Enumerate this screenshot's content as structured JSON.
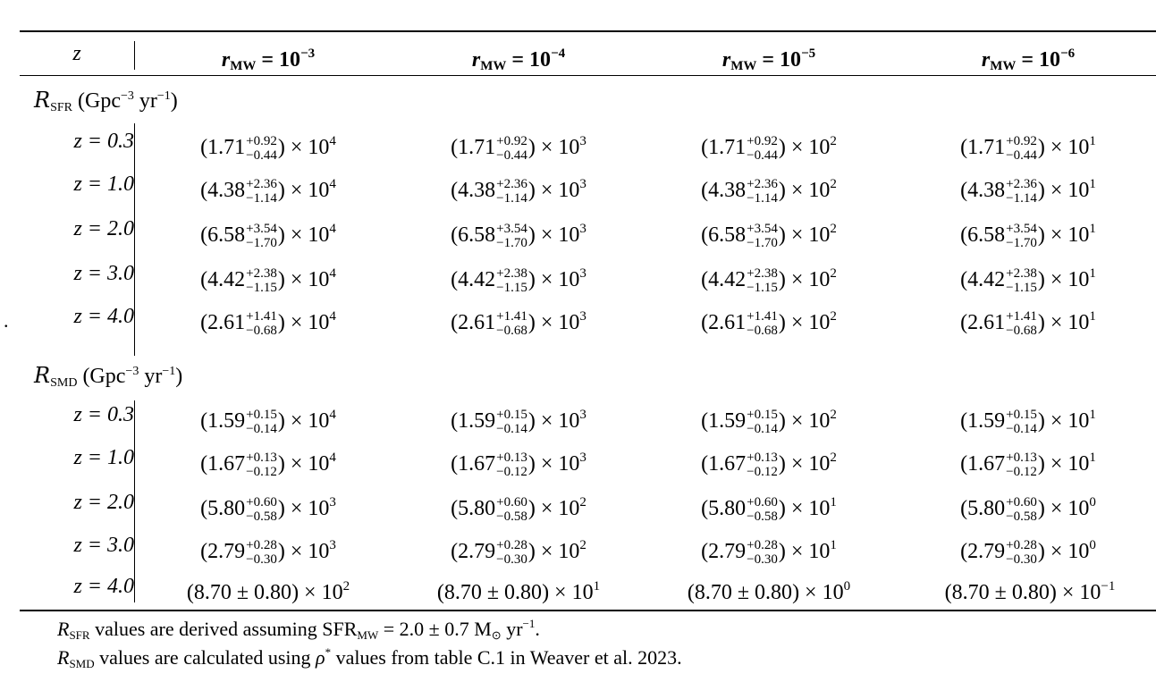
{
  "stray_mark": ".",
  "header": {
    "z_label": "z",
    "columns": [
      {
        "sym": "r",
        "sub": "MW",
        "eq": " = 10",
        "exp": "−3"
      },
      {
        "sym": "r",
        "sub": "MW",
        "eq": " = 10",
        "exp": "−4"
      },
      {
        "sym": "r",
        "sub": "MW",
        "eq": " = 10",
        "exp": "−5"
      },
      {
        "sym": "r",
        "sub": "MW",
        "eq": " = 10",
        "exp": "−6"
      }
    ]
  },
  "sections": [
    {
      "title": {
        "sym": "R",
        "sub": "SFR",
        "unit_pre": " (Gpc",
        "unit_exp1": "−3",
        "unit_mid": " yr",
        "unit_exp2": "−1",
        "unit_post": ")"
      },
      "rows": [
        {
          "z": "z = 0.3",
          "values": [
            {
              "base": "(1.71",
              "plus": "+0.92",
              "minus": "−0.44",
              "tail": ") × 10",
              "exp": "4"
            },
            {
              "base": "(1.71",
              "plus": "+0.92",
              "minus": "−0.44",
              "tail": ") × 10",
              "exp": "3"
            },
            {
              "base": "(1.71",
              "plus": "+0.92",
              "minus": "−0.44",
              "tail": ") × 10",
              "exp": "2"
            },
            {
              "base": "(1.71",
              "plus": "+0.92",
              "minus": "−0.44",
              "tail": ") × 10",
              "exp": "1"
            }
          ]
        },
        {
          "z": "z = 1.0",
          "values": [
            {
              "base": "(4.38",
              "plus": "+2.36",
              "minus": "−1.14",
              "tail": ") × 10",
              "exp": "4"
            },
            {
              "base": "(4.38",
              "plus": "+2.36",
              "minus": "−1.14",
              "tail": ") × 10",
              "exp": "3"
            },
            {
              "base": "(4.38",
              "plus": "+2.36",
              "minus": "−1.14",
              "tail": ") × 10",
              "exp": "2"
            },
            {
              "base": "(4.38",
              "plus": "+2.36",
              "minus": "−1.14",
              "tail": ") × 10",
              "exp": "1"
            }
          ]
        },
        {
          "z": "z = 2.0",
          "values": [
            {
              "base": "(6.58",
              "plus": "+3.54",
              "minus": "−1.70",
              "tail": ") × 10",
              "exp": "4"
            },
            {
              "base": "(6.58",
              "plus": "+3.54",
              "minus": "−1.70",
              "tail": ") × 10",
              "exp": "3"
            },
            {
              "base": "(6.58",
              "plus": "+3.54",
              "minus": "−1.70",
              "tail": ") × 10",
              "exp": "2"
            },
            {
              "base": "(6.58",
              "plus": "+3.54",
              "minus": "−1.70",
              "tail": ") × 10",
              "exp": "1"
            }
          ]
        },
        {
          "z": "z = 3.0",
          "values": [
            {
              "base": "(4.42",
              "plus": "+2.38",
              "minus": "−1.15",
              "tail": ") × 10",
              "exp": "4"
            },
            {
              "base": "(4.42",
              "plus": "+2.38",
              "minus": "−1.15",
              "tail": ") × 10",
              "exp": "3"
            },
            {
              "base": "(4.42",
              "plus": "+2.38",
              "minus": "−1.15",
              "tail": ") × 10",
              "exp": "2"
            },
            {
              "base": "(4.42",
              "plus": "+2.38",
              "minus": "−1.15",
              "tail": ") × 10",
              "exp": "1"
            }
          ]
        },
        {
          "z": "z = 4.0",
          "values": [
            {
              "base": "(2.61",
              "plus": "+1.41",
              "minus": "−0.68",
              "tail": ") × 10",
              "exp": "4"
            },
            {
              "base": "(2.61",
              "plus": "+1.41",
              "minus": "−0.68",
              "tail": ") × 10",
              "exp": "3"
            },
            {
              "base": "(2.61",
              "plus": "+1.41",
              "minus": "−0.68",
              "tail": ") × 10",
              "exp": "2"
            },
            {
              "base": "(2.61",
              "plus": "+1.41",
              "minus": "−0.68",
              "tail": ") × 10",
              "exp": "1"
            }
          ]
        }
      ]
    },
    {
      "title": {
        "sym": "R",
        "sub": "SMD",
        "unit_pre": " (Gpc",
        "unit_exp1": "−3",
        "unit_mid": " yr",
        "unit_exp2": "−1",
        "unit_post": ")"
      },
      "rows": [
        {
          "z": "z = 0.3",
          "values": [
            {
              "base": "(1.59",
              "plus": "+0.15",
              "minus": "−0.14",
              "tail": ") × 10",
              "exp": "4"
            },
            {
              "base": "(1.59",
              "plus": "+0.15",
              "minus": "−0.14",
              "tail": ") × 10",
              "exp": "3"
            },
            {
              "base": "(1.59",
              "plus": "+0.15",
              "minus": "−0.14",
              "tail": ") × 10",
              "exp": "2"
            },
            {
              "base": "(1.59",
              "plus": "+0.15",
              "minus": "−0.14",
              "tail": ") × 10",
              "exp": "1"
            }
          ]
        },
        {
          "z": "z = 1.0",
          "values": [
            {
              "base": "(1.67",
              "plus": "+0.13",
              "minus": "−0.12",
              "tail": ") × 10",
              "exp": "4"
            },
            {
              "base": "(1.67",
              "plus": "+0.13",
              "minus": "−0.12",
              "tail": ") × 10",
              "exp": "3"
            },
            {
              "base": "(1.67",
              "plus": "+0.13",
              "minus": "−0.12",
              "tail": ") × 10",
              "exp": "2"
            },
            {
              "base": "(1.67",
              "plus": "+0.13",
              "minus": "−0.12",
              "tail": ") × 10",
              "exp": "1"
            }
          ]
        },
        {
          "z": "z = 2.0",
          "values": [
            {
              "base": "(5.80",
              "plus": "+0.60",
              "minus": "−0.58",
              "tail": ") × 10",
              "exp": "3"
            },
            {
              "base": "(5.80",
              "plus": "+0.60",
              "minus": "−0.58",
              "tail": ") × 10",
              "exp": "2"
            },
            {
              "base": "(5.80",
              "plus": "+0.60",
              "minus": "−0.58",
              "tail": ") × 10",
              "exp": "1"
            },
            {
              "base": "(5.80",
              "plus": "+0.60",
              "minus": "−0.58",
              "tail": ") × 10",
              "exp": "0"
            }
          ]
        },
        {
          "z": "z = 3.0",
          "values": [
            {
              "base": "(2.79",
              "plus": "+0.28",
              "minus": "−0.30",
              "tail": ") × 10",
              "exp": "3"
            },
            {
              "base": "(2.79",
              "plus": "+0.28",
              "minus": "−0.30",
              "tail": ") × 10",
              "exp": "2"
            },
            {
              "base": "(2.79",
              "plus": "+0.28",
              "minus": "−0.30",
              "tail": ") × 10",
              "exp": "1"
            },
            {
              "base": "(2.79",
              "plus": "+0.28",
              "minus": "−0.30",
              "tail": ") × 10",
              "exp": "0"
            }
          ]
        },
        {
          "z": "z = 4.0",
          "values": [
            {
              "base": "(8.70 ± 0.80",
              "plus": "",
              "minus": "",
              "tail": ") × 10",
              "exp": "2"
            },
            {
              "base": "(8.70 ± 0.80",
              "plus": "",
              "minus": "",
              "tail": ") × 10",
              "exp": "1"
            },
            {
              "base": "(8.70 ± 0.80",
              "plus": "",
              "minus": "",
              "tail": ") × 10",
              "exp": "0"
            },
            {
              "base": "(8.70 ± 0.80",
              "plus": "",
              "minus": "",
              "tail": ") × 10",
              "exp": "−1"
            }
          ]
        }
      ]
    }
  ],
  "notes": [
    {
      "sym": "R",
      "sub": "SFR",
      "a": " values are derived assuming SFR",
      "a_sub": "MW",
      "b": " = 2.0 ± 0.7 M",
      "b_sub": "⊙",
      "c": " yr",
      "c_sup": "−1",
      "d": "."
    },
    {
      "sym": "R",
      "sub": "SMD",
      "a": " values are calculated using ",
      "rho": "ρ",
      "rho_sup": "*",
      "b": " values from table C.1 in Weaver et al. 2023."
    }
  ]
}
